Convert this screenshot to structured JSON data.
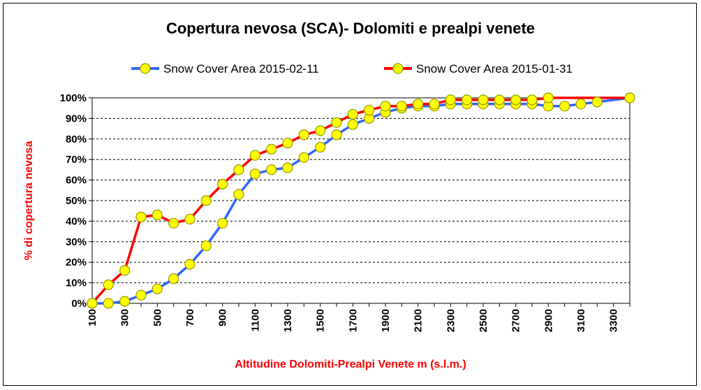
{
  "chart_data": {
    "type": "line",
    "title": "Copertura nevosa (SCA)- Dolomiti e prealpi venete",
    "xlabel": "Altitudine Dolomiti-Prealpi Venete m (s.l.m.)",
    "ylabel": "% di copertura nevosa",
    "ylim": [
      0,
      100
    ],
    "yticks": [
      0,
      10,
      20,
      30,
      40,
      50,
      60,
      70,
      80,
      90,
      100
    ],
    "ytick_labels": [
      "0%",
      "10%",
      "20%",
      "30%",
      "40%",
      "50%",
      "60%",
      "70%",
      "80%",
      "90%",
      "100%"
    ],
    "x": [
      100,
      200,
      300,
      400,
      500,
      600,
      700,
      800,
      900,
      1000,
      1100,
      1200,
      1300,
      1400,
      1500,
      1600,
      1700,
      1800,
      1900,
      2000,
      2100,
      2200,
      2300,
      2400,
      2500,
      2600,
      2700,
      2800,
      2900,
      3000,
      3100,
      3200,
      3300,
      3400
    ],
    "xtick_labels": [
      "100",
      "300",
      "500",
      "700",
      "900",
      "1100",
      "1300",
      "1500",
      "1700",
      "1900",
      "2100",
      "2300",
      "2500",
      "2700",
      "2900",
      "3100",
      "3300"
    ],
    "xtick_values": [
      100,
      300,
      500,
      700,
      900,
      1100,
      1300,
      1500,
      1700,
      1900,
      2100,
      2300,
      2500,
      2700,
      2900,
      3100,
      3300
    ],
    "grid": true,
    "legend_position": "top",
    "series": [
      {
        "name": "Snow Cover Area 2015-02-11",
        "color": "#3366ff",
        "values": [
          0,
          0,
          1,
          4,
          7,
          12,
          19,
          28,
          39,
          53,
          63,
          65,
          66,
          71,
          76,
          82,
          87,
          90,
          93,
          95,
          96,
          96,
          97,
          97,
          97,
          97,
          97,
          97,
          96,
          96,
          97,
          98,
          null,
          100
        ]
      },
      {
        "name": "Snow Cover Area 2015-01-31",
        "color": "#ff0000",
        "values": [
          0,
          9,
          16,
          42,
          43,
          39,
          41,
          50,
          58,
          65,
          72,
          75,
          78,
          82,
          84,
          88,
          92,
          94,
          96,
          96,
          97,
          97,
          99,
          99,
          99,
          99,
          99,
          99,
          100,
          null,
          null,
          null,
          null,
          100
        ]
      }
    ],
    "marker_fill": "#ffff00",
    "marker_stroke": "#999900"
  }
}
